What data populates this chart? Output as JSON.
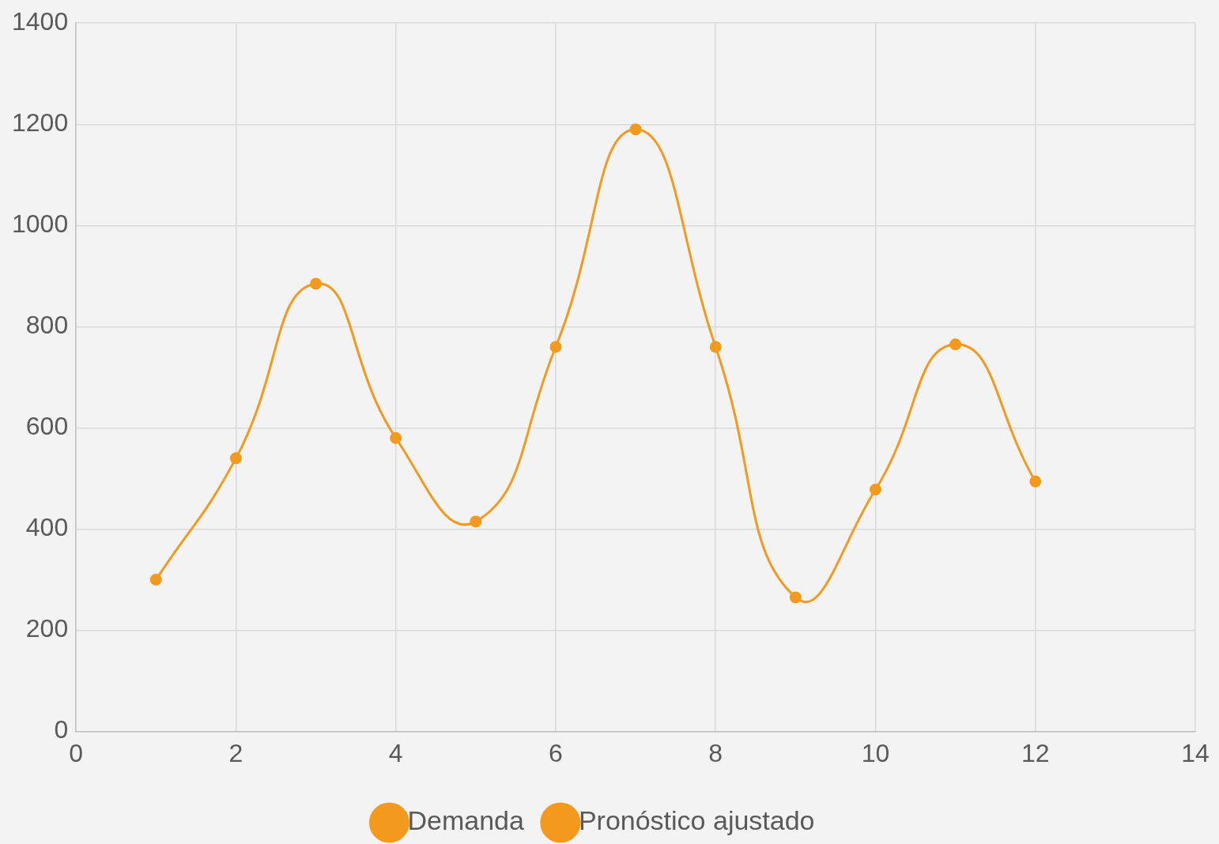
{
  "chart_data": {
    "type": "line",
    "x": [
      1,
      2,
      3,
      4,
      5,
      6,
      7,
      8,
      9,
      10,
      11,
      12
    ],
    "series": [
      {
        "name": "Demanda",
        "color": "#f39a1e",
        "values": [
          300,
          540,
          885,
          580,
          415,
          760,
          1190,
          760,
          265,
          478,
          765,
          494
        ]
      },
      {
        "name": "Pronóstico ajustado",
        "color": "#f39a1e",
        "values": [
          null,
          null,
          null,
          null,
          null,
          null,
          null,
          null,
          null,
          null,
          null,
          null
        ]
      }
    ],
    "xlim": [
      0,
      14
    ],
    "xticks": [
      0,
      2,
      4,
      6,
      8,
      10,
      12,
      14
    ],
    "ylim": [
      0,
      1400
    ],
    "yticks": [
      0,
      200,
      400,
      600,
      800,
      1000,
      1200,
      1400
    ],
    "grid": true,
    "legend": "bottom",
    "marker": "circle",
    "line_style": "solid"
  }
}
